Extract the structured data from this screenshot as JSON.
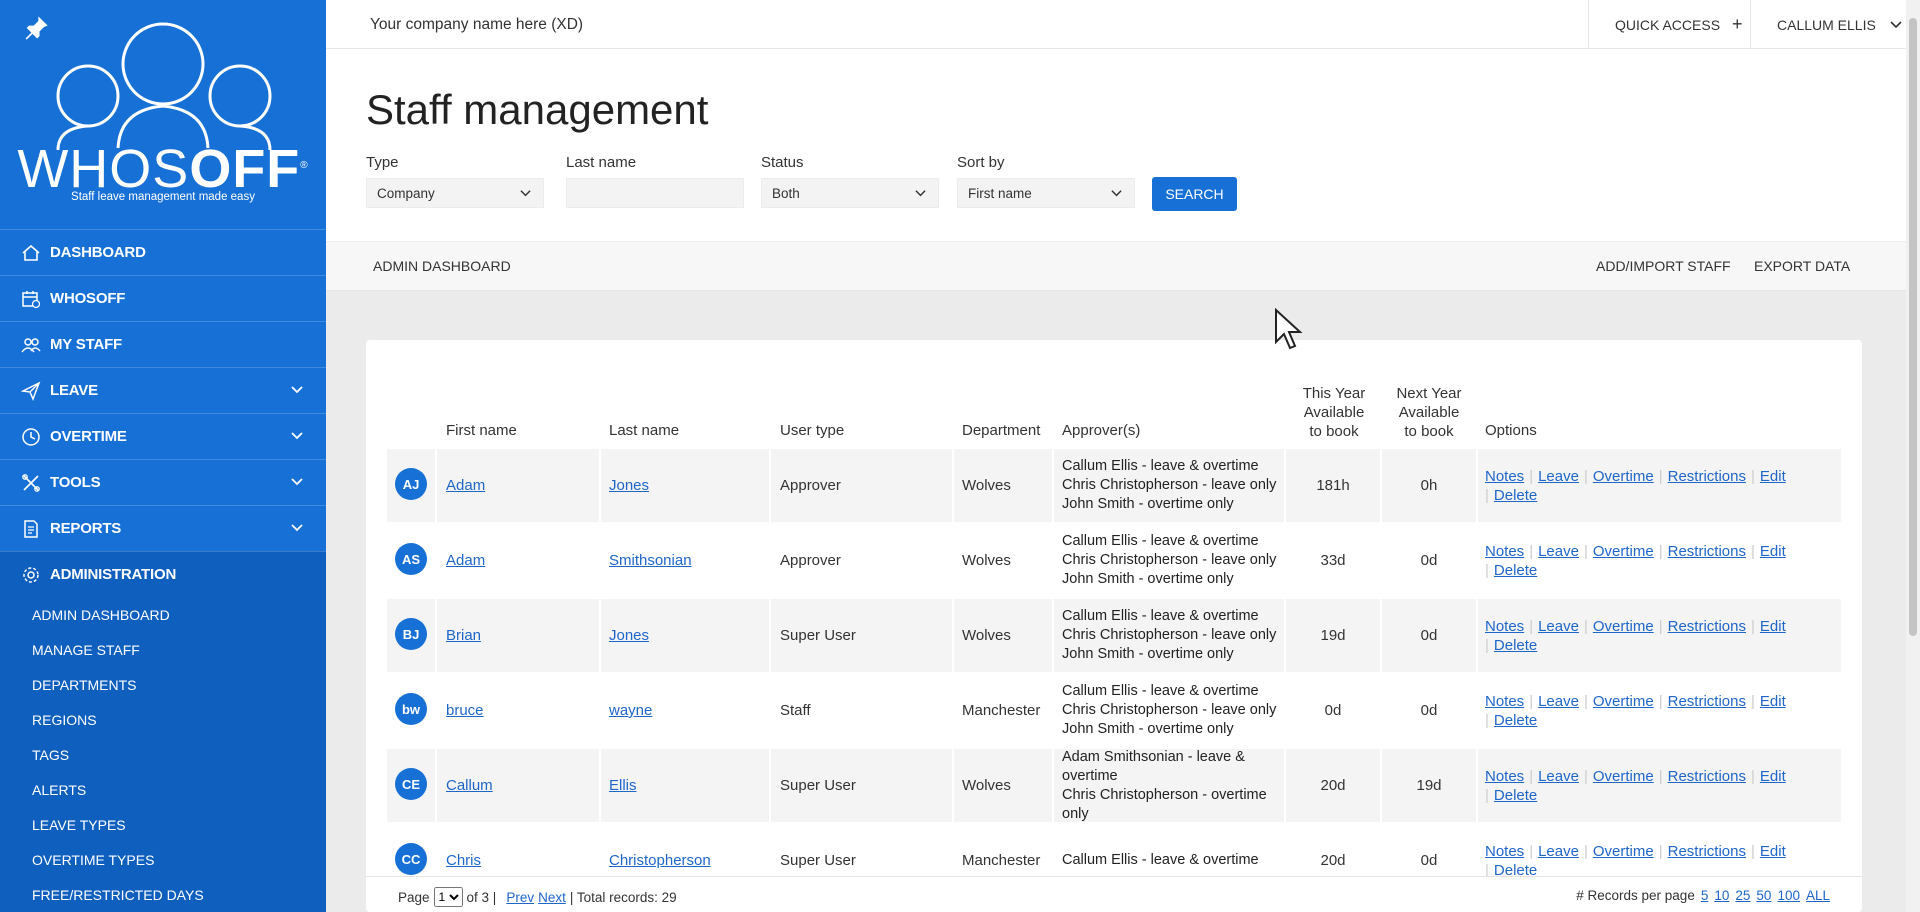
{
  "sidebar": {
    "logo_who": "WHOS",
    "logo_off": "OFF",
    "logo_reg": "®",
    "tagline": "Staff leave management made easy",
    "nav": [
      {
        "label": "DASHBOARD",
        "icon": "home-icon"
      },
      {
        "label": "WHOSOFF",
        "icon": "calendar-icon"
      },
      {
        "label": "MY STAFF",
        "icon": "people-icon"
      },
      {
        "label": "LEAVE",
        "icon": "plane-icon"
      },
      {
        "label": "OVERTIME",
        "icon": "clock-icon"
      },
      {
        "label": "TOOLS",
        "icon": "tools-icon"
      },
      {
        "label": "REPORTS",
        "icon": "report-icon"
      },
      {
        "label": "ADMINISTRATION",
        "icon": "gear-icon"
      }
    ],
    "subnav": [
      "ADMIN DASHBOARD",
      "MANAGE STAFF",
      "DEPARTMENTS",
      "REGIONS",
      "TAGS",
      "ALERTS",
      "LEAVE TYPES",
      "OVERTIME TYPES",
      "FREE/RESTRICTED DAYS"
    ]
  },
  "topbar": {
    "company": "Your company name here (XD)",
    "quick_access": "QUICK ACCESS",
    "quick_plus": "+",
    "user": "CALLUM ELLIS"
  },
  "page": {
    "title": "Staff management",
    "filters": {
      "type_label": "Type",
      "type_value": "Company",
      "lastname_label": "Last name",
      "lastname_value": "",
      "status_label": "Status",
      "status_value": "Both",
      "sort_label": "Sort by",
      "sort_value": "First name"
    },
    "search_label": "SEARCH",
    "admin_dashboard": "ADMIN DASHBOARD",
    "add_import": "ADD/IMPORT STAFF",
    "export": "EXPORT DATA"
  },
  "table": {
    "headers": {
      "first": "First name",
      "last": "Last name",
      "usertype": "User type",
      "dept": "Department",
      "approvers": "Approver(s)",
      "this_year_1": "This Year",
      "this_year_2": "Available",
      "this_year_3": "to book",
      "next_year_1": "Next Year",
      "next_year_2": "Available",
      "next_year_3": "to book",
      "options": "Options"
    },
    "options": {
      "notes": "Notes",
      "leave": "Leave",
      "overtime": "Overtime",
      "restrictions": "Restrictions",
      "edit": "Edit",
      "delete": "Delete"
    },
    "rows": [
      {
        "initials": "AJ",
        "first": "Adam",
        "last": "Jones",
        "type": "Approver",
        "dept": "Wolves",
        "a1": "Callum Ellis - leave & overtime",
        "a2": "Chris Christopherson - leave only",
        "a3": "John Smith - overtime only",
        "a4": "",
        "this_year": "181h",
        "next_year": "0h"
      },
      {
        "initials": "AS",
        "first": "Adam",
        "last": "Smithsonian",
        "type": "Approver",
        "dept": "Wolves",
        "a1": "Callum Ellis - leave & overtime",
        "a2": "Chris Christopherson - leave only",
        "a3": "John Smith - overtime only",
        "a4": "",
        "this_year": "33d",
        "next_year": "0d"
      },
      {
        "initials": "BJ",
        "first": "Brian",
        "last": "Jones",
        "type": "Super User",
        "dept": "Wolves",
        "a1": "Callum Ellis - leave & overtime",
        "a2": "Chris Christopherson - leave only",
        "a3": "John Smith - overtime only",
        "a4": "",
        "this_year": "19d",
        "next_year": "0d"
      },
      {
        "initials": "bw",
        "first": "bruce",
        "last": "wayne",
        "type": "Staff",
        "dept": "Manchester",
        "a1": "Callum Ellis - leave & overtime",
        "a2": "Chris Christopherson - leave only",
        "a3": "John Smith - overtime only",
        "a4": "",
        "this_year": "0d",
        "next_year": "0d"
      },
      {
        "initials": "CE",
        "first": "Callum",
        "last": "Ellis",
        "type": "Super User",
        "dept": "Wolves",
        "a1": "Adam Smithsonian - leave &",
        "a2": "overtime",
        "a3": "Chris Christopherson - overtime",
        "a4": "only",
        "this_year": "20d",
        "next_year": "19d"
      },
      {
        "initials": "CC",
        "first": "Chris",
        "last": "Christopherson",
        "type": "Super User",
        "dept": "Manchester",
        "a1": "Callum Ellis - leave & overtime",
        "a2": "",
        "a3": "",
        "a4": "",
        "this_year": "20d",
        "next_year": "0d"
      }
    ]
  },
  "pager": {
    "page_label": "Page",
    "page_value": "1",
    "of": "of 3 |",
    "prev": "Prev",
    "next": "Next",
    "total": "| Total records: 29",
    "per_page_label": "# Records per page",
    "sizes": [
      "5",
      "10",
      "25",
      "50",
      "100",
      "ALL"
    ]
  },
  "colors": {
    "brand": "#1670d6",
    "brand_dark": "#0f5fbf",
    "link": "#1f66c9"
  }
}
